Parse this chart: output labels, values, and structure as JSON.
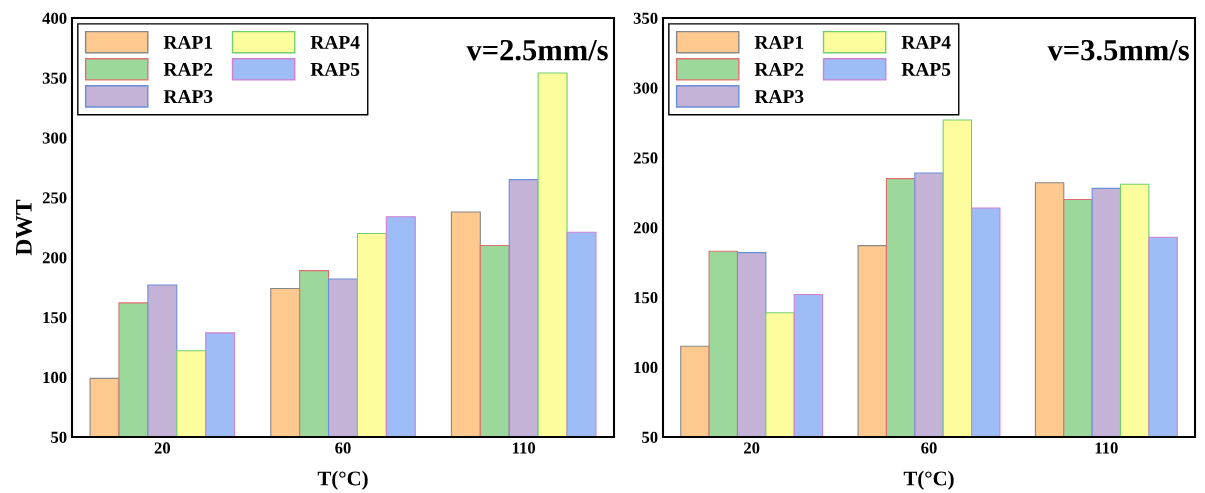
{
  "chart_data": [
    {
      "type": "bar",
      "categories": [
        "20",
        "60",
        "110"
      ],
      "xlabel": "T(°C)",
      "ylabel": "DWT",
      "annotations": [
        "v=2.5mm/s"
      ],
      "ylim": [
        50,
        400
      ],
      "yticks": [
        50,
        100,
        150,
        200,
        250,
        300,
        350,
        400
      ],
      "legend": "top left",
      "grid": false,
      "series": [
        {
          "name": "RAP1",
          "color": "#fdc98f",
          "values": [
            99,
            174,
            238
          ]
        },
        {
          "name": "RAP2",
          "color": "#9cd79b",
          "values": [
            162,
            189,
            210
          ]
        },
        {
          "name": "RAP3",
          "color": "#c5b3d7",
          "values": [
            177,
            182,
            265
          ]
        },
        {
          "name": "RAP4",
          "color": "#fefd9e",
          "values": [
            122,
            220,
            354
          ]
        },
        {
          "name": "RAP5",
          "color": "#9ebcf6",
          "values": [
            137,
            234,
            221
          ]
        }
      ]
    },
    {
      "type": "bar",
      "categories": [
        "20",
        "60",
        "110"
      ],
      "xlabel": "T(°C)",
      "annotations": [
        "v=3.5mm/s"
      ],
      "ylim": [
        50,
        350
      ],
      "yticks": [
        50,
        100,
        150,
        200,
        250,
        300,
        350
      ],
      "legend": "top left",
      "grid": false,
      "series": [
        {
          "name": "RAP1",
          "color": "#fdc98f",
          "values": [
            115,
            187,
            232
          ]
        },
        {
          "name": "RAP2",
          "color": "#9cd79b",
          "values": [
            183,
            235,
            220
          ]
        },
        {
          "name": "RAP3",
          "color": "#c5b3d7",
          "values": [
            182,
            239,
            228
          ]
        },
        {
          "name": "RAP4",
          "color": "#fefd9e",
          "values": [
            139,
            277,
            231
          ]
        },
        {
          "name": "RAP5",
          "color": "#9ebcf6",
          "values": [
            152,
            214,
            193
          ]
        }
      ]
    }
  ]
}
